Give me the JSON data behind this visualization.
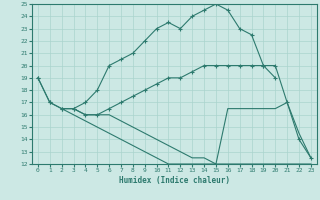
{
  "xlabel": "Humidex (Indice chaleur)",
  "bg_color": "#cce8e4",
  "line_color": "#2d7a6e",
  "grid_color": "#aad4ce",
  "xlim": [
    -0.5,
    23.5
  ],
  "ylim": [
    12,
    25
  ],
  "xticks": [
    0,
    1,
    2,
    3,
    4,
    5,
    6,
    7,
    8,
    9,
    10,
    11,
    12,
    13,
    14,
    15,
    16,
    17,
    18,
    19,
    20,
    21,
    22,
    23
  ],
  "yticks": [
    12,
    13,
    14,
    15,
    16,
    17,
    18,
    19,
    20,
    21,
    22,
    23,
    24,
    25
  ],
  "line1_x": [
    0,
    1,
    2,
    3,
    4,
    5,
    6,
    7,
    8,
    9,
    10,
    11,
    12,
    13,
    14,
    15,
    16,
    17,
    18,
    19,
    20
  ],
  "line1_y": [
    19,
    17,
    16.5,
    16.5,
    17,
    18,
    20,
    20.5,
    21,
    22,
    23,
    23.5,
    23,
    24,
    24.5,
    25,
    24.5,
    23,
    22.5,
    20,
    19
  ],
  "line2_x": [
    0,
    1,
    2,
    3,
    4,
    5,
    6,
    7,
    8,
    9,
    10,
    11,
    12,
    13,
    14,
    15,
    16,
    17,
    18,
    19,
    20,
    21,
    22,
    23
  ],
  "line2_y": [
    19,
    17,
    16.5,
    16.5,
    16,
    16,
    16.5,
    17,
    17.5,
    18,
    18.5,
    19,
    19,
    19.5,
    20,
    20,
    20,
    20,
    20,
    20,
    20,
    17,
    14,
    12.5
  ],
  "line3_x": [
    2,
    3,
    4,
    5,
    6,
    7,
    8,
    9,
    10,
    11,
    12,
    13,
    14,
    15,
    16,
    17,
    18,
    19,
    20,
    21,
    22,
    23
  ],
  "line3_y": [
    16.5,
    16.5,
    16,
    16,
    16,
    15.5,
    15,
    14.5,
    14,
    13.5,
    13,
    12.5,
    12.5,
    12,
    16.5,
    16.5,
    16.5,
    16.5,
    16.5,
    17,
    14.5,
    12.5
  ],
  "line4_x": [
    2,
    3,
    4,
    5,
    6,
    7,
    8,
    9,
    10,
    11,
    12,
    13,
    14,
    15,
    16,
    17,
    18,
    19,
    20,
    21,
    22,
    23
  ],
  "line4_y": [
    16.5,
    16,
    15.5,
    15,
    14.5,
    14,
    13.5,
    13,
    12.5,
    12,
    12,
    12,
    12,
    12,
    12,
    12,
    12,
    12,
    12,
    12,
    12,
    12
  ]
}
